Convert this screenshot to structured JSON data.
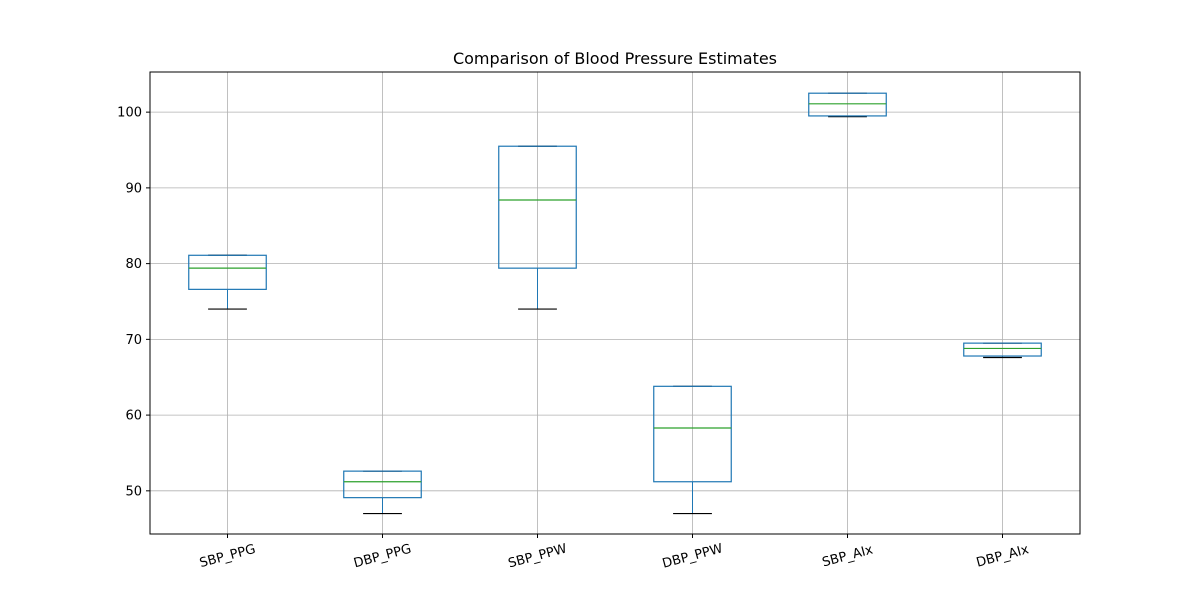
{
  "chart_data": {
    "type": "box",
    "title": "Comparison of Blood Pressure Estimates",
    "xlabel": "",
    "ylabel": "",
    "ylim": [
      44.3,
      105.3
    ],
    "yticks": [
      50,
      60,
      70,
      80,
      90,
      100
    ],
    "grid": true,
    "legend": "none",
    "categories": [
      "SBP_PPG",
      "DBP_PPG",
      "SBP_PPW",
      "DBP_PPW",
      "SBP_AIx",
      "DBP_AIx"
    ],
    "boxes": [
      {
        "min": 74.0,
        "q1": 76.6,
        "median": 79.4,
        "q3": 81.1,
        "max": 81.1
      },
      {
        "min": 47.0,
        "q1": 49.1,
        "median": 51.2,
        "q3": 52.6,
        "max": 52.6
      },
      {
        "min": 74.0,
        "q1": 79.4,
        "median": 88.4,
        "q3": 95.5,
        "max": 95.5
      },
      {
        "min": 47.0,
        "q1": 51.2,
        "median": 58.3,
        "q3": 63.8,
        "max": 63.8
      },
      {
        "min": 99.4,
        "q1": 99.5,
        "median": 101.1,
        "q3": 102.5,
        "max": 102.5
      },
      {
        "min": 67.6,
        "q1": 67.8,
        "median": 68.8,
        "q3": 69.5,
        "max": 69.5
      }
    ],
    "colors": {
      "box": "#1f77b4",
      "median": "#2ca02c",
      "whisker": "#1f77b4",
      "cap": "#000000",
      "grid": "#b0b0b0",
      "axis": "#000000"
    }
  }
}
